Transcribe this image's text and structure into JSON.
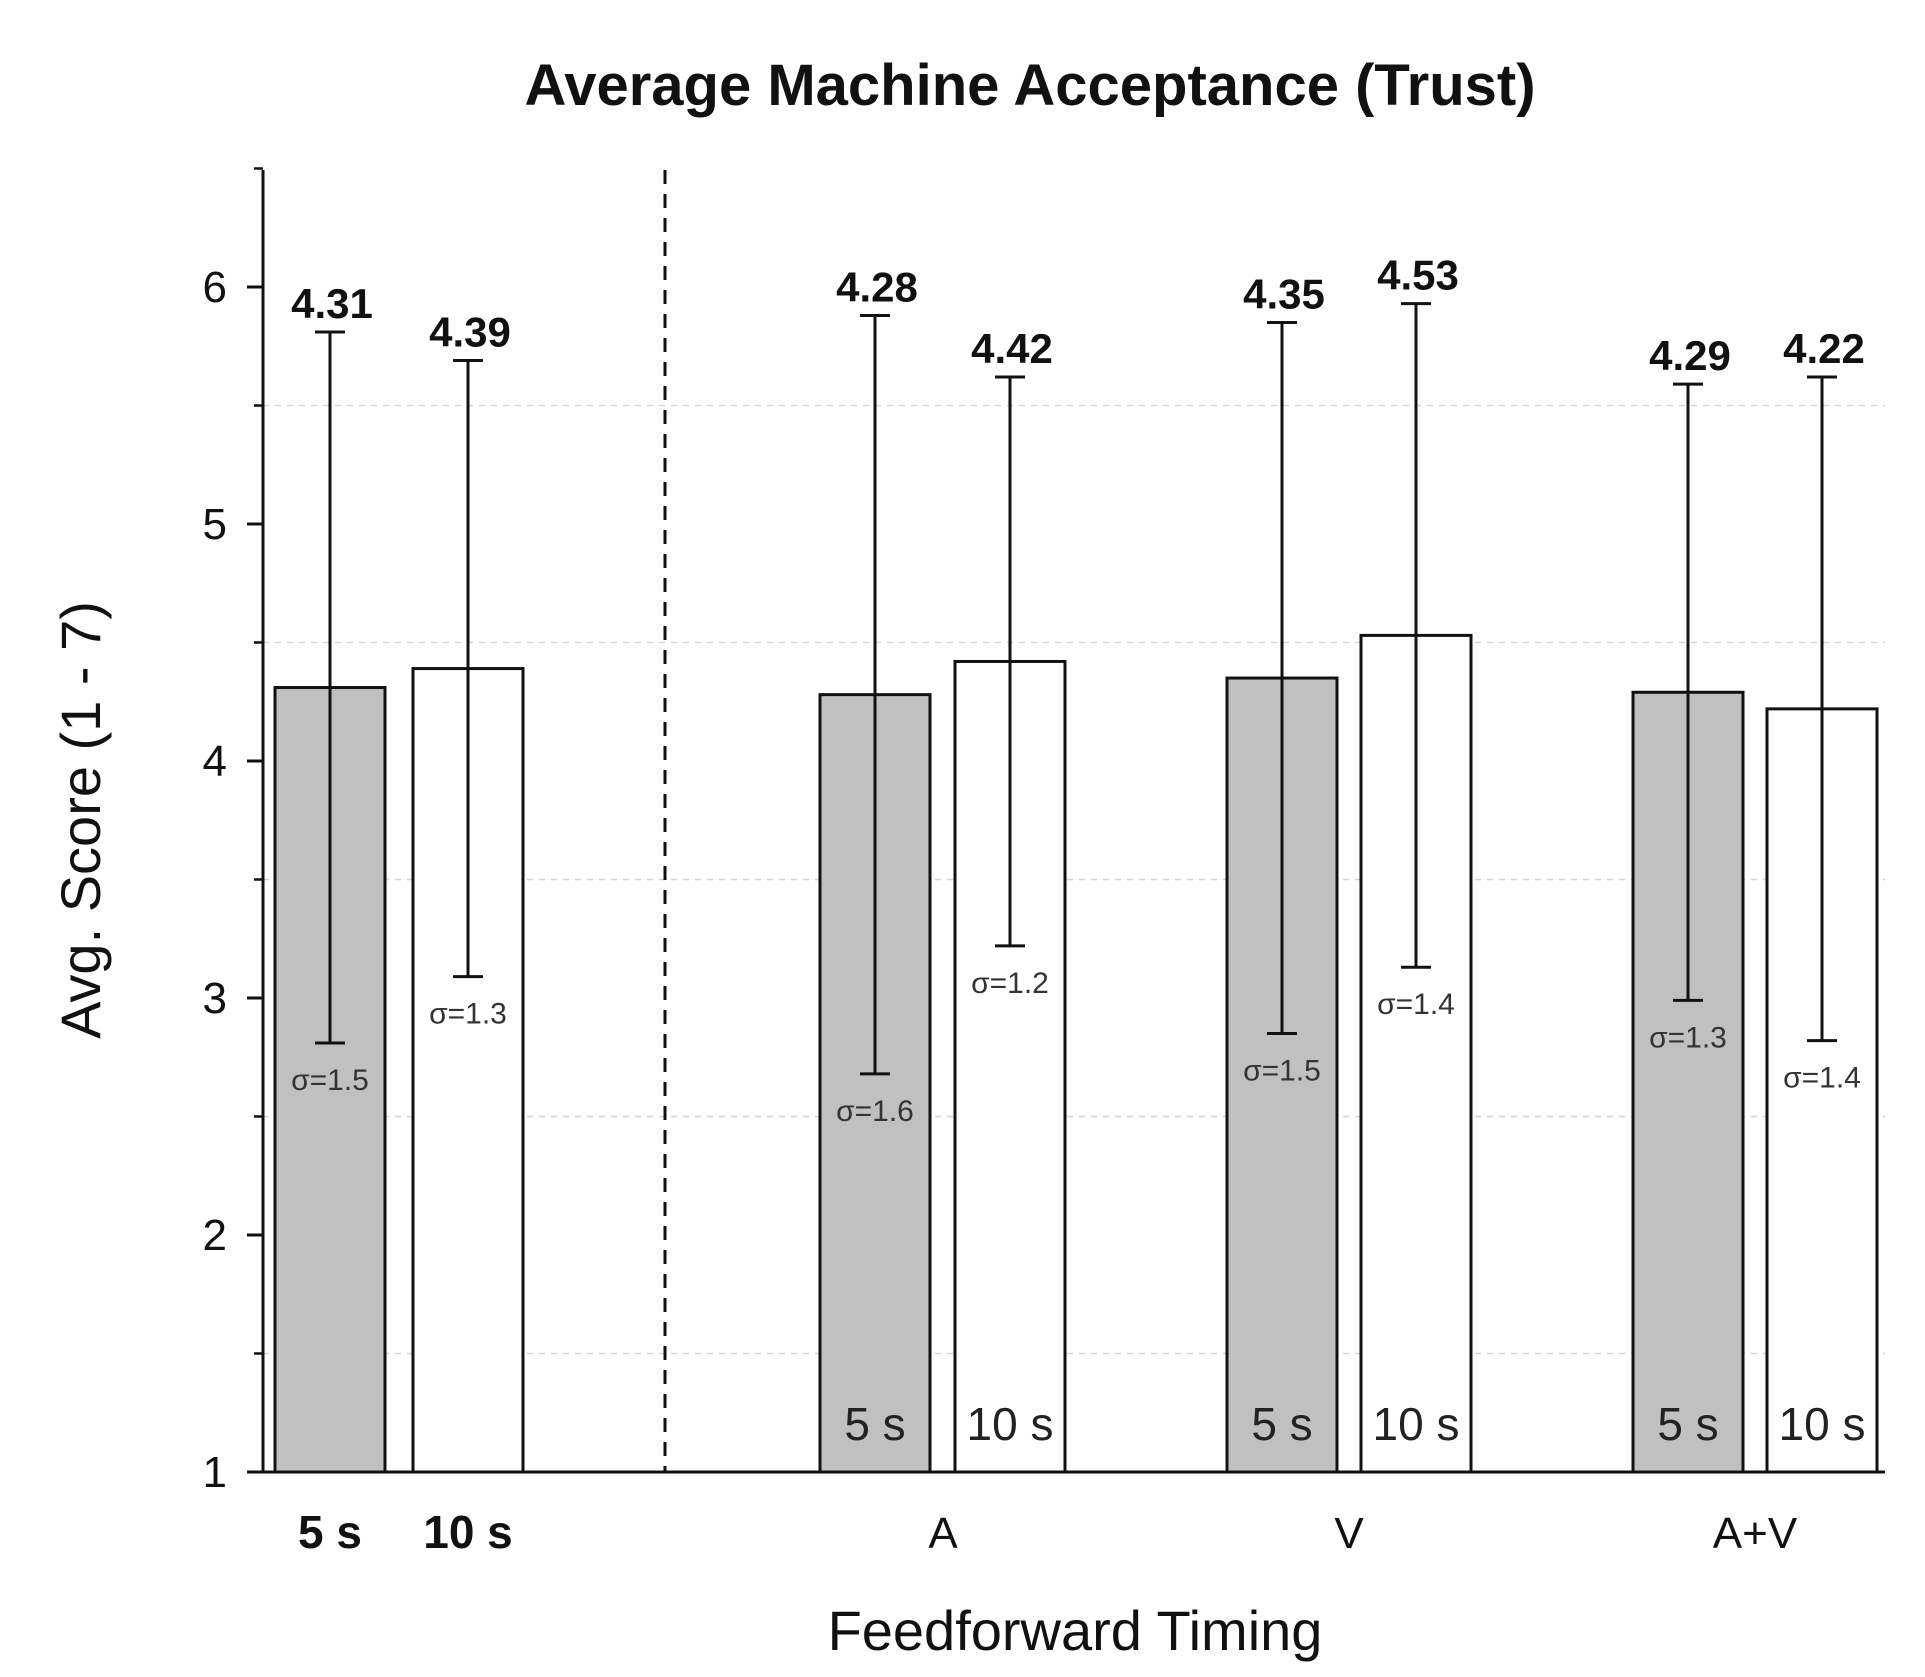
{
  "chart_data": {
    "type": "bar",
    "title": "Average Machine Acceptance (Trust)",
    "xlabel": "Feedforward Timing",
    "ylabel": "Avg. Score (1 - 7)",
    "ylim": [
      1,
      6.5
    ],
    "yticks": [
      1,
      2,
      3,
      4,
      5,
      6
    ],
    "grid": "dashed-horizontal-half-steps",
    "colors": {
      "5 s": "#c0c0c0",
      "10 s": "#ffffff",
      "stroke": "#111111"
    },
    "groups": [
      {
        "label_5": "5 s",
        "label_10": "10 s",
        "category": ""
      },
      {
        "category": "A"
      },
      {
        "category": "V"
      },
      {
        "category": "A+V"
      }
    ],
    "bars": [
      {
        "group": 0,
        "timing": "5 s",
        "value": 4.31,
        "value_label": "4.31",
        "sd": 1.5,
        "sd_label": "σ=1.5",
        "inbar_label": ""
      },
      {
        "group": 0,
        "timing": "10 s",
        "value": 4.39,
        "value_label": "4.39",
        "sd": 1.3,
        "sd_label": "σ=1.3",
        "inbar_label": ""
      },
      {
        "group": 1,
        "timing": "5 s",
        "value": 4.28,
        "value_label": "4.28",
        "sd": 1.6,
        "sd_label": "σ=1.6",
        "inbar_label": "5 s"
      },
      {
        "group": 1,
        "timing": "10 s",
        "value": 4.42,
        "value_label": "4.42",
        "sd": 1.2,
        "sd_label": "σ=1.2",
        "inbar_label": "10 s"
      },
      {
        "group": 2,
        "timing": "5 s",
        "value": 4.35,
        "value_label": "4.35",
        "sd": 1.5,
        "sd_label": "σ=1.5",
        "inbar_label": "5 s"
      },
      {
        "group": 2,
        "timing": "10 s",
        "value": 4.53,
        "value_label": "4.53",
        "sd": 1.4,
        "sd_label": "σ=1.4",
        "inbar_label": "10 s"
      },
      {
        "group": 3,
        "timing": "5 s",
        "value": 4.29,
        "value_label": "4.29",
        "sd": 1.3,
        "sd_label": "σ=1.3",
        "inbar_label": "5 s"
      },
      {
        "group": 3,
        "timing": "10 s",
        "value": 4.22,
        "value_label": "4.22",
        "sd": 1.4,
        "sd_label": "σ=1.4",
        "inbar_label": "10 s"
      }
    ],
    "x_categories": [
      "5 s",
      "10 s",
      "A",
      "V",
      "A+V"
    ]
  }
}
